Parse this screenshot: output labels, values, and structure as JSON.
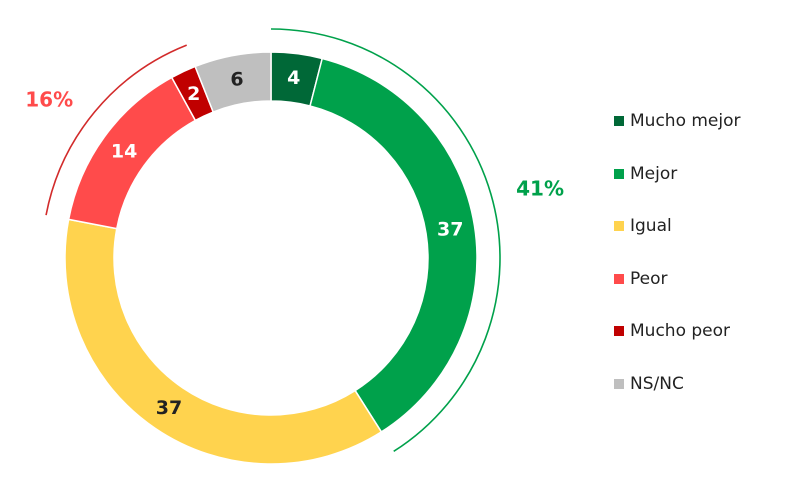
{
  "chart_data": {
    "type": "donut",
    "unit": "%",
    "segments": [
      {
        "label": "Mucho mejor",
        "value": 4,
        "color": "#006837",
        "text_color": "#ffffff"
      },
      {
        "label": "Mejor",
        "value": 37,
        "color": "#00a14b",
        "text_color": "#ffffff"
      },
      {
        "label": "Igual",
        "value": 37,
        "color": "#ffd34e",
        "text_color": "#222222"
      },
      {
        "label": "Peor",
        "value": 14,
        "color": "#ff4b4b",
        "text_color": "#ffffff"
      },
      {
        "label": "Mucho peor",
        "value": 2,
        "color": "#c00000",
        "text_color": "#ffffff"
      },
      {
        "label": "NS/NC",
        "value": 6,
        "color": "#bfbfbf",
        "text_color": "#222222"
      }
    ],
    "groups": [
      {
        "label": "41%",
        "segments": [
          "Mucho mejor",
          "Mejor"
        ],
        "color": "#00a14b"
      },
      {
        "label": "16%",
        "segments": [
          "Peor",
          "Mucho peor"
        ],
        "color": "#ff4b4b",
        "line_color": "#d22b2b"
      }
    ],
    "legend_position": "right"
  }
}
